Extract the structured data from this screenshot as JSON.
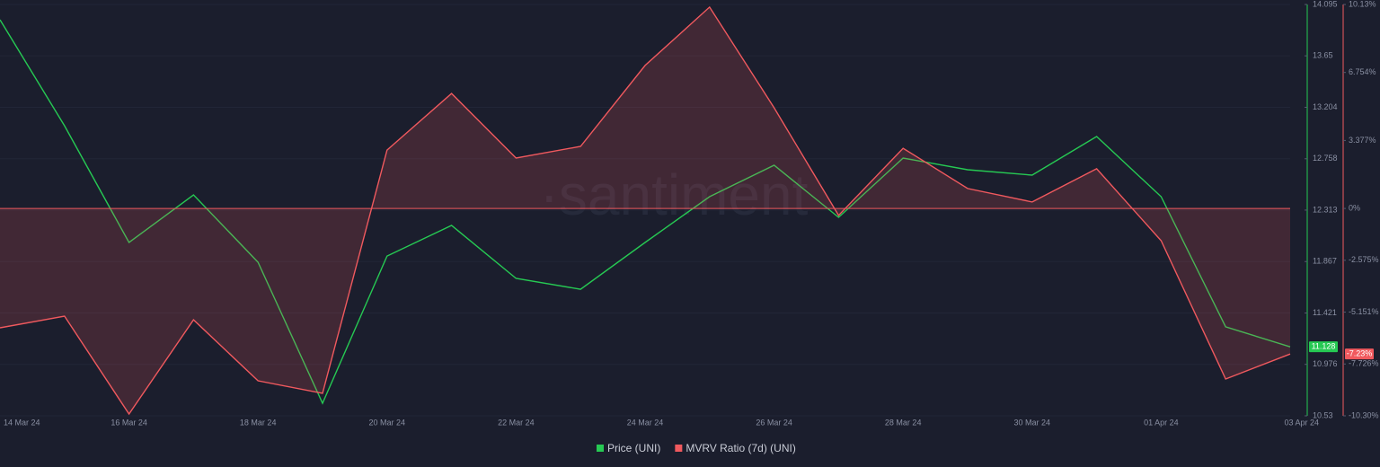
{
  "chart_data": {
    "type": "line",
    "watermark": "·santiment",
    "categories": [
      "14 Mar 24",
      null,
      "16 Mar 24",
      null,
      "18 Mar 24",
      null,
      "20 Mar 24",
      null,
      "22 Mar 24",
      null,
      "24 Mar 24",
      null,
      "26 Mar 24",
      null,
      "28 Mar 24",
      null,
      "30 Mar 24",
      null,
      "01 Apr 24",
      null,
      "03 Apr 24"
    ],
    "series": [
      {
        "name": "Price (UNI)",
        "color": "#26c953",
        "values": [
          13.963,
          13.044,
          12.032,
          12.445,
          11.861,
          10.639,
          11.915,
          12.18,
          11.721,
          11.627,
          12.032,
          12.429,
          12.702,
          12.25,
          12.764,
          12.663,
          12.616,
          12.951,
          12.429,
          11.301,
          11.128
        ],
        "value_labels": [
          null,
          null,
          null,
          null,
          null,
          null,
          null,
          null,
          null,
          null,
          null,
          null,
          null,
          null,
          null,
          null,
          null,
          null,
          null,
          null,
          "11.128"
        ]
      },
      {
        "name": "MVRV Ratio (7d) (UNI)",
        "color": "#f0595e",
        "axis": "y2",
        "area": true,
        "values": [
          -5.93,
          -5.35,
          -10.21,
          -5.53,
          -8.56,
          -9.18,
          2.9,
          5.71,
          2.5,
          3.08,
          7.1,
          10.0,
          5.0,
          -0.35,
          2.99,
          0.99,
          0.32,
          1.97,
          -1.6,
          -8.47,
          -7.23
        ],
        "value_labels": [
          null,
          null,
          null,
          null,
          null,
          null,
          null,
          null,
          null,
          null,
          null,
          null,
          null,
          null,
          null,
          null,
          null,
          null,
          null,
          null,
          "-7.23%"
        ]
      }
    ],
    "ylim": [
      10.53,
      14.095
    ],
    "yticks": [
      10.53,
      10.976,
      11.421,
      11.867,
      12.313,
      12.758,
      13.204,
      13.65,
      14.095
    ],
    "y2lim": [
      -10.3,
      10.13
    ],
    "y2ticks": [
      {
        "value": -10.3,
        "label": "-10.30%"
      },
      {
        "value": -7.726,
        "label": "-7.726%"
      },
      {
        "value": -5.151,
        "label": "-5.151%"
      },
      {
        "value": -2.575,
        "label": "-2.575%"
      },
      {
        "value": 0,
        "label": "0%"
      },
      {
        "value": 3.377,
        "label": "3.377%"
      },
      {
        "value": 6.754,
        "label": "6.754%"
      },
      {
        "value": 10.13,
        "label": "10.13%"
      }
    ],
    "grid": true
  }
}
